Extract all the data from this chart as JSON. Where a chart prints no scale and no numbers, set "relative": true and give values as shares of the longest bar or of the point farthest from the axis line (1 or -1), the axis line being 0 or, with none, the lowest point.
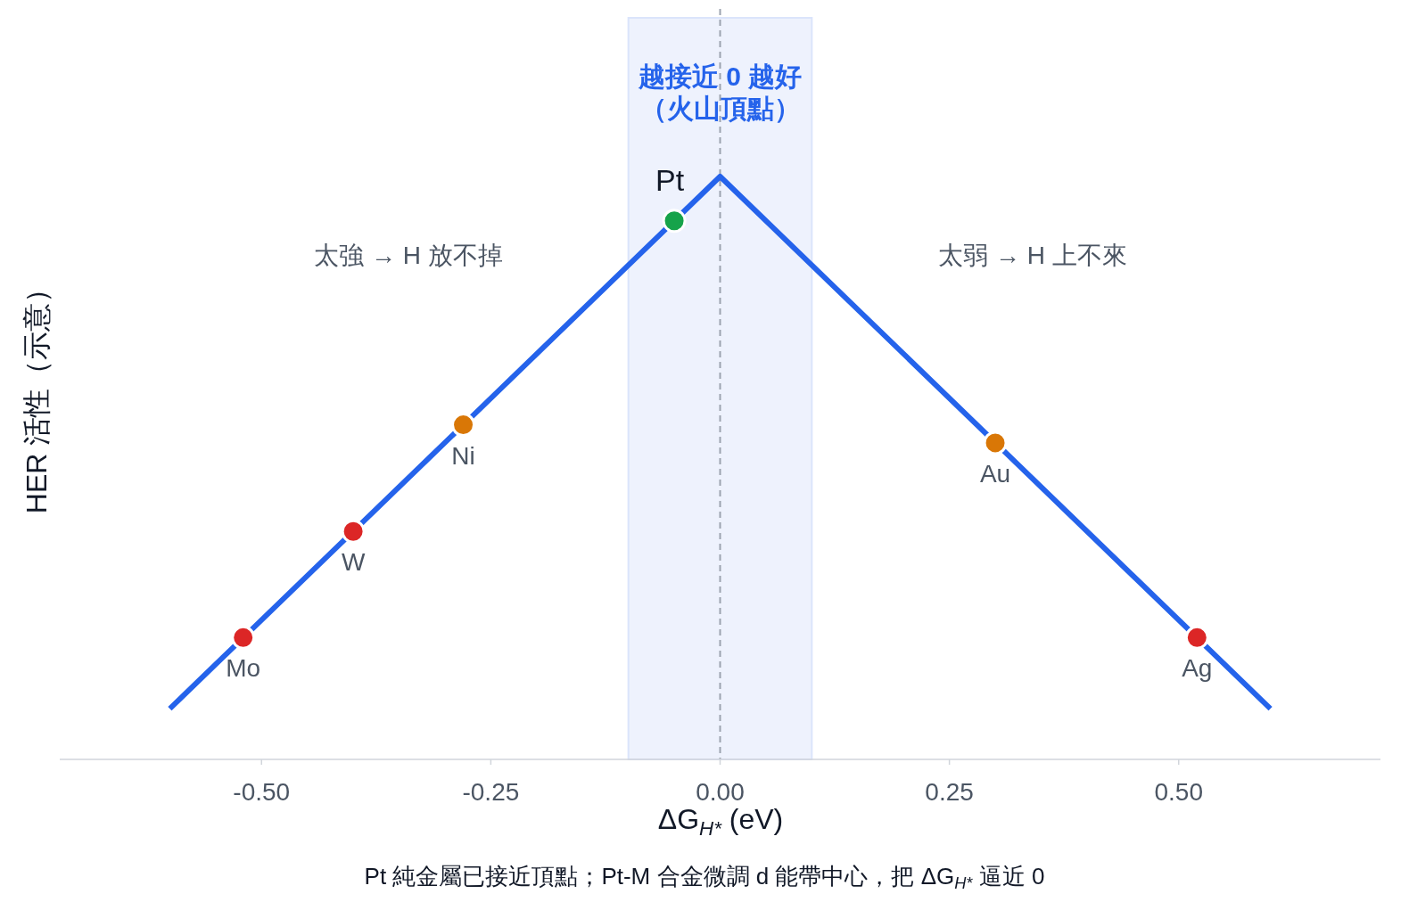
{
  "chart_data": {
    "type": "line",
    "relative": true,
    "xlabel": "ΔG$_{H*}$ (eV)",
    "ylabel": "HER 活性（示意）",
    "xlim": [
      -0.72,
      0.72
    ],
    "xticks": [
      {
        "value": -0.5,
        "label": "-0.50"
      },
      {
        "value": -0.25,
        "label": "-0.25"
      },
      {
        "value": 0,
        "label": "0.00"
      },
      {
        "value": 0.25,
        "label": "0.25"
      },
      {
        "value": 0.5,
        "label": "0.50"
      }
    ],
    "grid": false,
    "series": [
      {
        "color": "#2563eb",
        "marker": "none",
        "x": [
          -0.6,
          0,
          0.6
        ],
        "values": [
          0.087,
          1,
          0.087
        ]
      },
      {
        "type": "scatter",
        "marker": "circle",
        "colors": [
          "#dc2626",
          "#dc2626",
          "#d97706",
          "#16a34a",
          "#d97706",
          "#dc2626"
        ],
        "x": [
          -0.52,
          -0.4,
          -0.28,
          -0.05,
          0.3,
          0.52
        ],
        "values": [
          0.209,
          0.391,
          0.574,
          0.924,
          0.543,
          0.209
        ]
      }
    ],
    "bands": [
      {
        "axis": "x",
        "from": -0.1,
        "to": 0.1,
        "label": "越接近 0 越好（火山頂點）",
        "color": "#eef2fd"
      }
    ],
    "ref_lines": [
      {
        "axis": "x",
        "value": 0,
        "color": "#9ca3af",
        "line_style": "dashed"
      }
    ],
    "annotations": [
      {
        "text": "Mo",
        "x": -0.52,
        "y": 0.209
      },
      {
        "text": "W",
        "x": -0.4,
        "y": 0.391
      },
      {
        "text": "Ni",
        "x": -0.28,
        "y": 0.574
      },
      {
        "text": "Pt",
        "x": -0.05,
        "y": 0.924
      },
      {
        "text": "Au",
        "x": 0.3,
        "y": 0.543
      },
      {
        "text": "Ag",
        "x": 0.52,
        "y": 0.209
      },
      "太強 → H 放不掉",
      "太弱 → H 上不來",
      "Pt 純金屬已接近頂點；Pt-M 合金微調 d 能帶中心，把 ΔG$_{H*}$ 逼近 0"
    ]
  }
}
